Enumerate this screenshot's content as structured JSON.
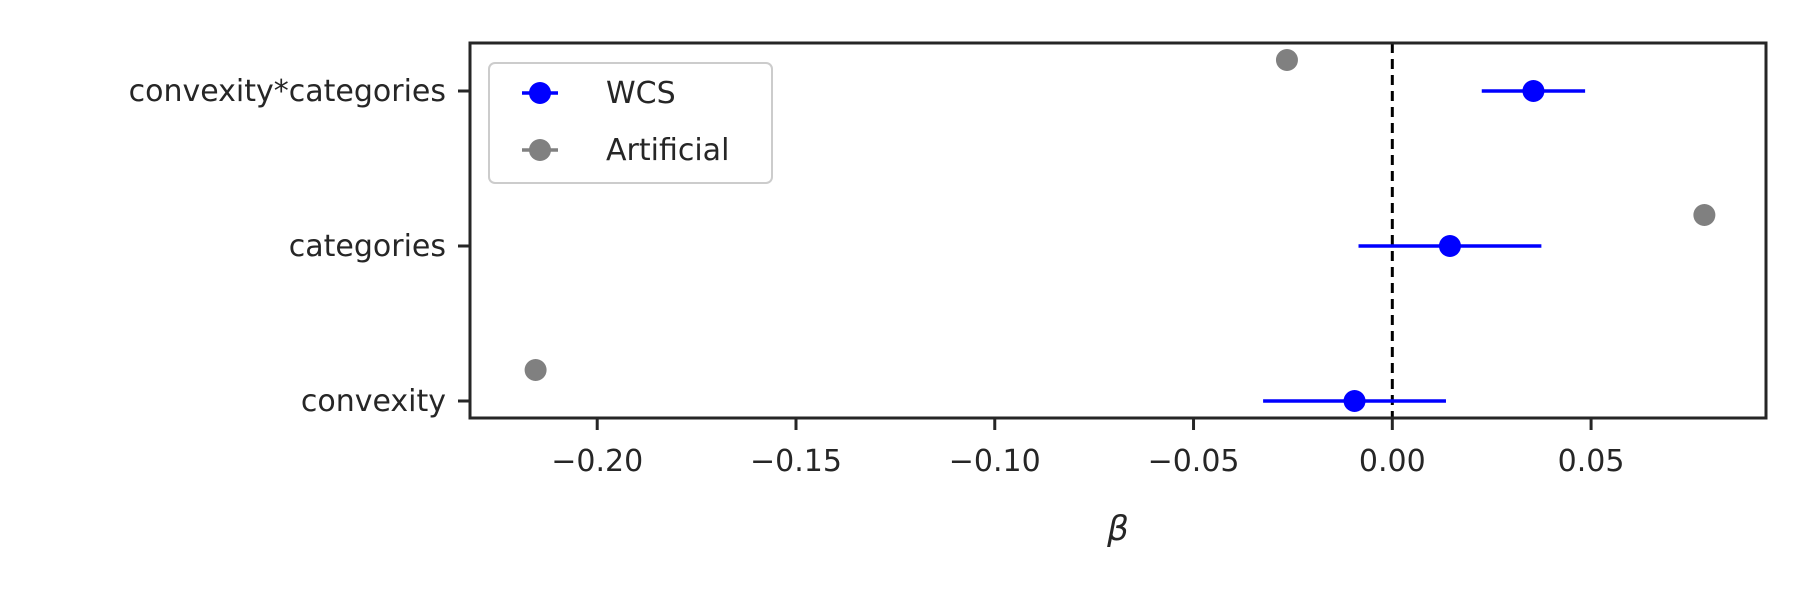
{
  "chart_data": {
    "type": "scatter",
    "title": "",
    "xlabel": "β",
    "ylabel": "",
    "xlim": [
      -0.232,
      0.094
    ],
    "categories": [
      "convexity",
      "categories",
      "convexity*categories"
    ],
    "x_ticks": [
      -0.2,
      -0.15,
      -0.1,
      -0.05,
      0.0,
      0.05
    ],
    "x_tick_labels": [
      "−0.20",
      "−0.15",
      "−0.10",
      "−0.05",
      "0.00",
      "0.05"
    ],
    "reference_line": {
      "x": 0.0,
      "style": "dashed",
      "color": "#000000"
    },
    "legend": {
      "position": "top-left"
    },
    "grid": false,
    "series": [
      {
        "name": "WCS",
        "color": "#0000ff",
        "points": [
          {
            "category": "convexity",
            "value": -0.0095,
            "ci": [
              -0.0325,
              0.0135
            ]
          },
          {
            "category": "categories",
            "value": 0.0145,
            "ci": [
              -0.0085,
              0.0375
            ]
          },
          {
            "category": "convexity*categories",
            "value": 0.0355,
            "ci": [
              0.0225,
              0.0485
            ]
          }
        ]
      },
      {
        "name": "Artificial",
        "color": "#808080",
        "points": [
          {
            "category": "convexity",
            "value": -0.2155
          },
          {
            "category": "categories",
            "value": 0.0785
          },
          {
            "category": "convexity*categories",
            "value": -0.0265
          }
        ]
      }
    ]
  }
}
